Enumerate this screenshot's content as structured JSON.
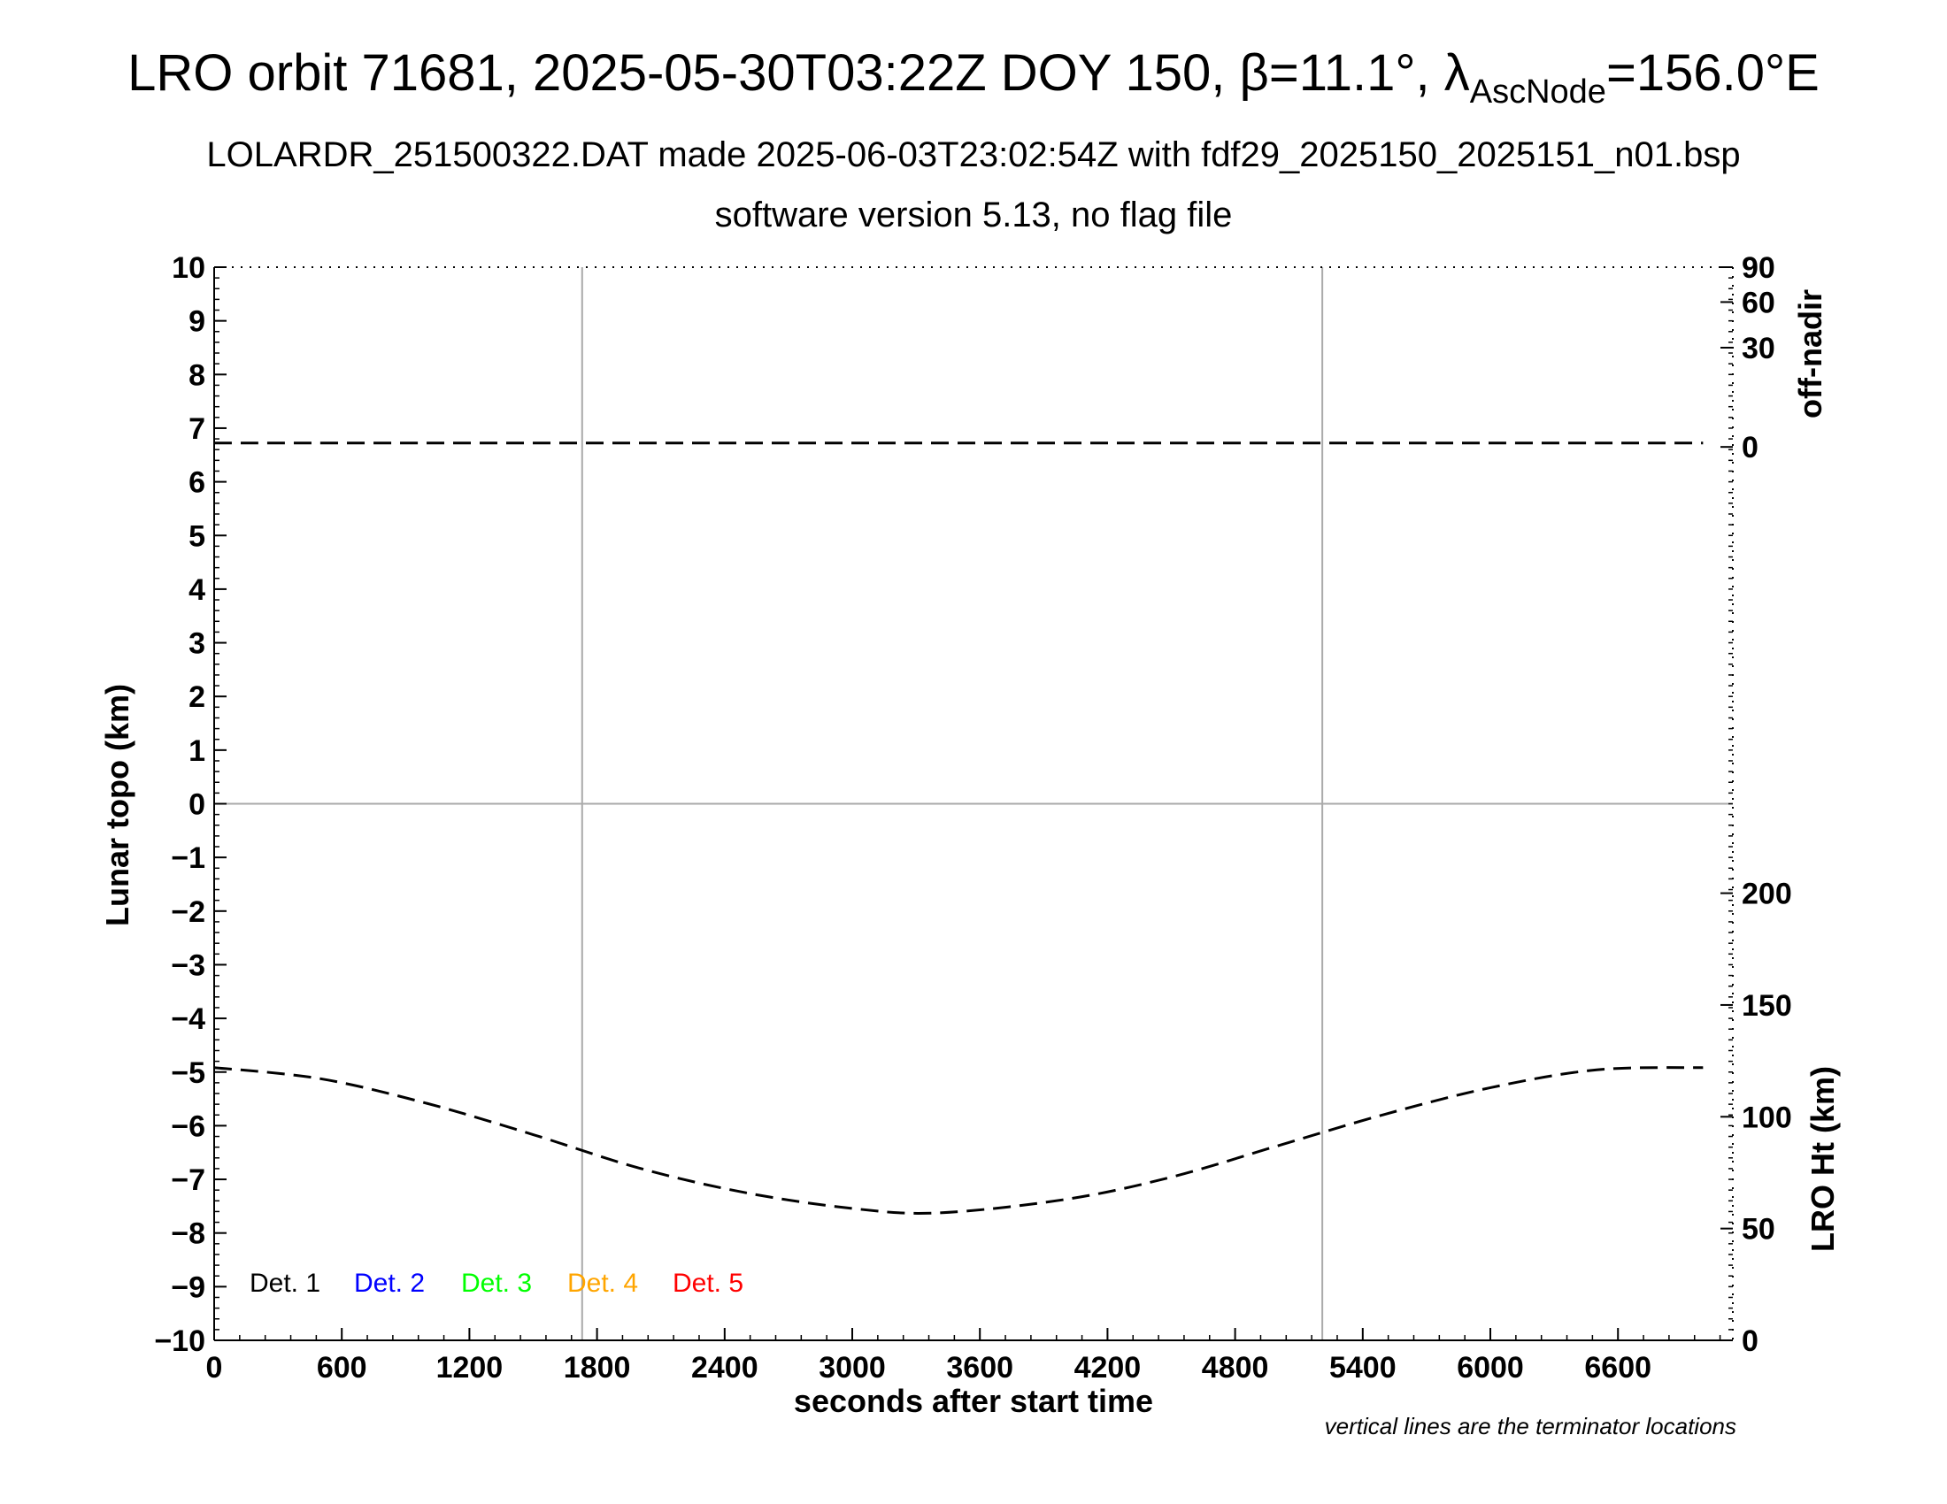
{
  "title": {
    "prefix": "LRO orbit 71681, 2025-05-30T03:22Z DOY 150, ",
    "beta_symbol": "β",
    "beta_value": "=11.1°, ",
    "lambda_symbol": "λ",
    "lambda_subscript": "AscNode",
    "lambda_value": "=156.0°E"
  },
  "subtitle1": "LOLARDR_251500322.DAT made 2025-06-03T23:02:54Z with fdf29_2025150_2025151_n01.bsp",
  "subtitle2": "software version 5.13, no flag file",
  "footnote": "vertical lines are the terminator locations",
  "chart_data": {
    "type": "line",
    "xlabel": "seconds after start time",
    "ylabel_left": "Lunar topo (km)",
    "ylabel_right_top": "off-nadir",
    "ylabel_right_bottom": "LRO Ht (km)",
    "xlim": [
      0,
      7140
    ],
    "ylim": [
      -10,
      10
    ],
    "x_ticks": [
      0,
      600,
      1200,
      1800,
      2400,
      3000,
      3600,
      4200,
      4800,
      5400,
      6000,
      6600
    ],
    "y_ticks": [
      10,
      9,
      8,
      7,
      6,
      5,
      4,
      3,
      2,
      1,
      0,
      -1,
      -2,
      -3,
      -4,
      -5,
      -6,
      -7,
      -8,
      -9,
      -10
    ],
    "y_tick_labels": [
      "10",
      "9",
      "8",
      "7",
      "6",
      "5",
      "4",
      "3",
      "2",
      "1",
      "0",
      "−1",
      "−2",
      "−3",
      "−4",
      "−5",
      "−6",
      "−7",
      "−8",
      "−9",
      "−10"
    ],
    "right_top_ticks": [
      {
        "label": "90",
        "at_topo": 10
      },
      {
        "label": "60",
        "at_topo": 9.35
      },
      {
        "label": "30",
        "at_topo": 8.5
      },
      {
        "label": "0",
        "at_topo": 6.65
      }
    ],
    "right_bottom_axis": {
      "range": [
        0,
        240
      ],
      "ticks": [
        0,
        50,
        100,
        150,
        200
      ]
    },
    "terminator_lines_x": [
      1730,
      5210
    ],
    "zero_line_y": 0,
    "legend": [
      {
        "label": "Det. 1",
        "color": "#000000"
      },
      {
        "label": "Det. 2",
        "color": "#0000ff"
      },
      {
        "label": "Det. 3",
        "color": "#00ff00"
      },
      {
        "label": "Det. 4",
        "color": "#ffa500"
      },
      {
        "label": "Det. 5",
        "color": "#ff0000"
      }
    ],
    "series": [
      {
        "axis": "off-nadir",
        "style": "dashed",
        "color": "#000000",
        "x": [
          0,
          1000,
          2000,
          3000,
          4000,
          5000,
          6000,
          7000
        ],
        "values": [
          1.2,
          1.2,
          1.2,
          1.2,
          1.2,
          1.2,
          1.2,
          1.2
        ]
      },
      {
        "axis": "LRO Ht (km)",
        "style": "dashed",
        "color": "#000000",
        "x": [
          0,
          500,
          1000,
          1500,
          2000,
          2500,
          3000,
          3400,
          4000,
          4500,
          5000,
          5500,
          6000,
          6500,
          7000
        ],
        "values": [
          122,
          117,
          106,
          92,
          77,
          66,
          59,
          57,
          63,
          73,
          87,
          101,
          113,
          121,
          122
        ]
      }
    ]
  }
}
